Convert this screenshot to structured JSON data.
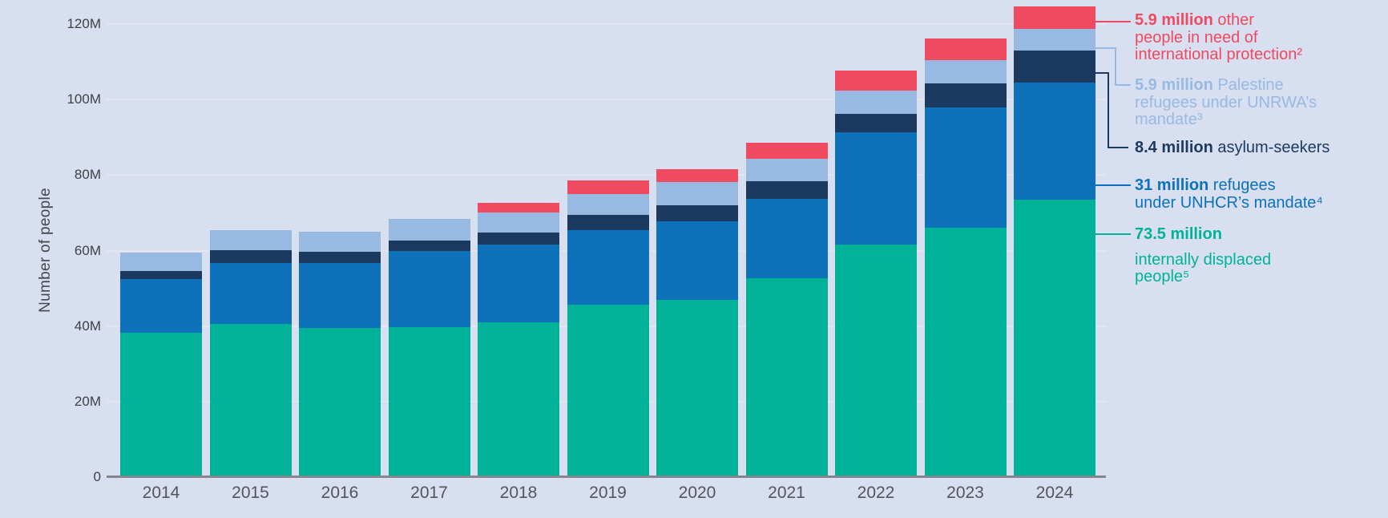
{
  "chart": {
    "y_axis_title": "Number of people",
    "background_color": "#d7dff0",
    "gridline_color": "#e3e5f1",
    "axis_line_color": "#83868d",
    "y_ticks": [
      {
        "value": 0,
        "label": "0"
      },
      {
        "value": 20,
        "label": "20M"
      },
      {
        "value": 40,
        "label": "40M"
      },
      {
        "value": 60,
        "label": "60M"
      },
      {
        "value": 80,
        "label": "80M"
      },
      {
        "value": 100,
        "label": "100M"
      },
      {
        "value": 120,
        "label": "120M"
      }
    ]
  },
  "chart_data": {
    "type": "bar",
    "stacked": true,
    "title": "",
    "xlabel": "",
    "ylabel": "Number of people",
    "ylim": [
      0,
      120
    ],
    "y_unit": "millions of people",
    "grid": "horizontal, subtle",
    "legend_position": "right",
    "categories": [
      "2014",
      "2015",
      "2016",
      "2017",
      "2018",
      "2019",
      "2020",
      "2021",
      "2022",
      "2023",
      "2024"
    ],
    "series": [
      {
        "id": "idp",
        "name": "internally displaced people",
        "color": "#00b398",
        "values": [
          38.2,
          40.6,
          39.6,
          39.8,
          41.0,
          45.7,
          47.0,
          52.6,
          61.7,
          66.0,
          73.5
        ]
      },
      {
        "id": "unhcr-refugees",
        "name": "refugees under UNHCR’s mandate",
        "color": "#0d72ba",
        "values": [
          14.3,
          16.2,
          17.2,
          20.1,
          20.6,
          19.8,
          20.8,
          21.2,
          29.7,
          31.9,
          31.0
        ]
      },
      {
        "id": "asylum-seekers",
        "name": "asylum-seekers",
        "color": "#1c3a5f",
        "values": [
          2.0,
          3.2,
          2.8,
          2.8,
          3.2,
          4.0,
          4.3,
          4.5,
          4.9,
          6.4,
          8.4
        ]
      },
      {
        "id": "unrwa-palestine",
        "name": "Palestine refugees under UNRWA’s mandate",
        "color": "#97b9e2",
        "values": [
          5.0,
          5.3,
          5.3,
          5.8,
          5.3,
          5.5,
          6.1,
          6.1,
          6.1,
          6.2,
          5.9
        ]
      },
      {
        "id": "oip",
        "name": "other people in need of international protection",
        "color": "#ef4a5f",
        "values": [
          0,
          0,
          0,
          0,
          2.6,
          3.6,
          3.4,
          4.1,
          5.3,
          5.7,
          5.9
        ]
      }
    ]
  },
  "legend": {
    "items": [
      {
        "id": "oip",
        "color": "#ef4a5f",
        "value": "5.9 million",
        "after": "other",
        "lines": [
          "people in need of",
          "international protection²"
        ]
      },
      {
        "id": "unrwa-palestine",
        "color": "#97b9e2",
        "value": "5.9 million",
        "after": "Palestine",
        "lines": [
          "refugees under UNRWA’s",
          "mandate³"
        ]
      },
      {
        "id": "asylum-seekers",
        "color": "#1c3a5f",
        "value": "8.4 million",
        "after": "asylum-seekers",
        "lines": []
      },
      {
        "id": "unhcr-refugees",
        "color": "#0d72ba",
        "value": "31 million",
        "after": "refugees",
        "lines": [
          "under UNHCR’s mandate⁴"
        ]
      },
      {
        "id": "idp",
        "color": "#00b398",
        "value": "73.5 million",
        "after": "",
        "lines": [
          "internally displaced",
          "people⁵"
        ]
      }
    ]
  }
}
